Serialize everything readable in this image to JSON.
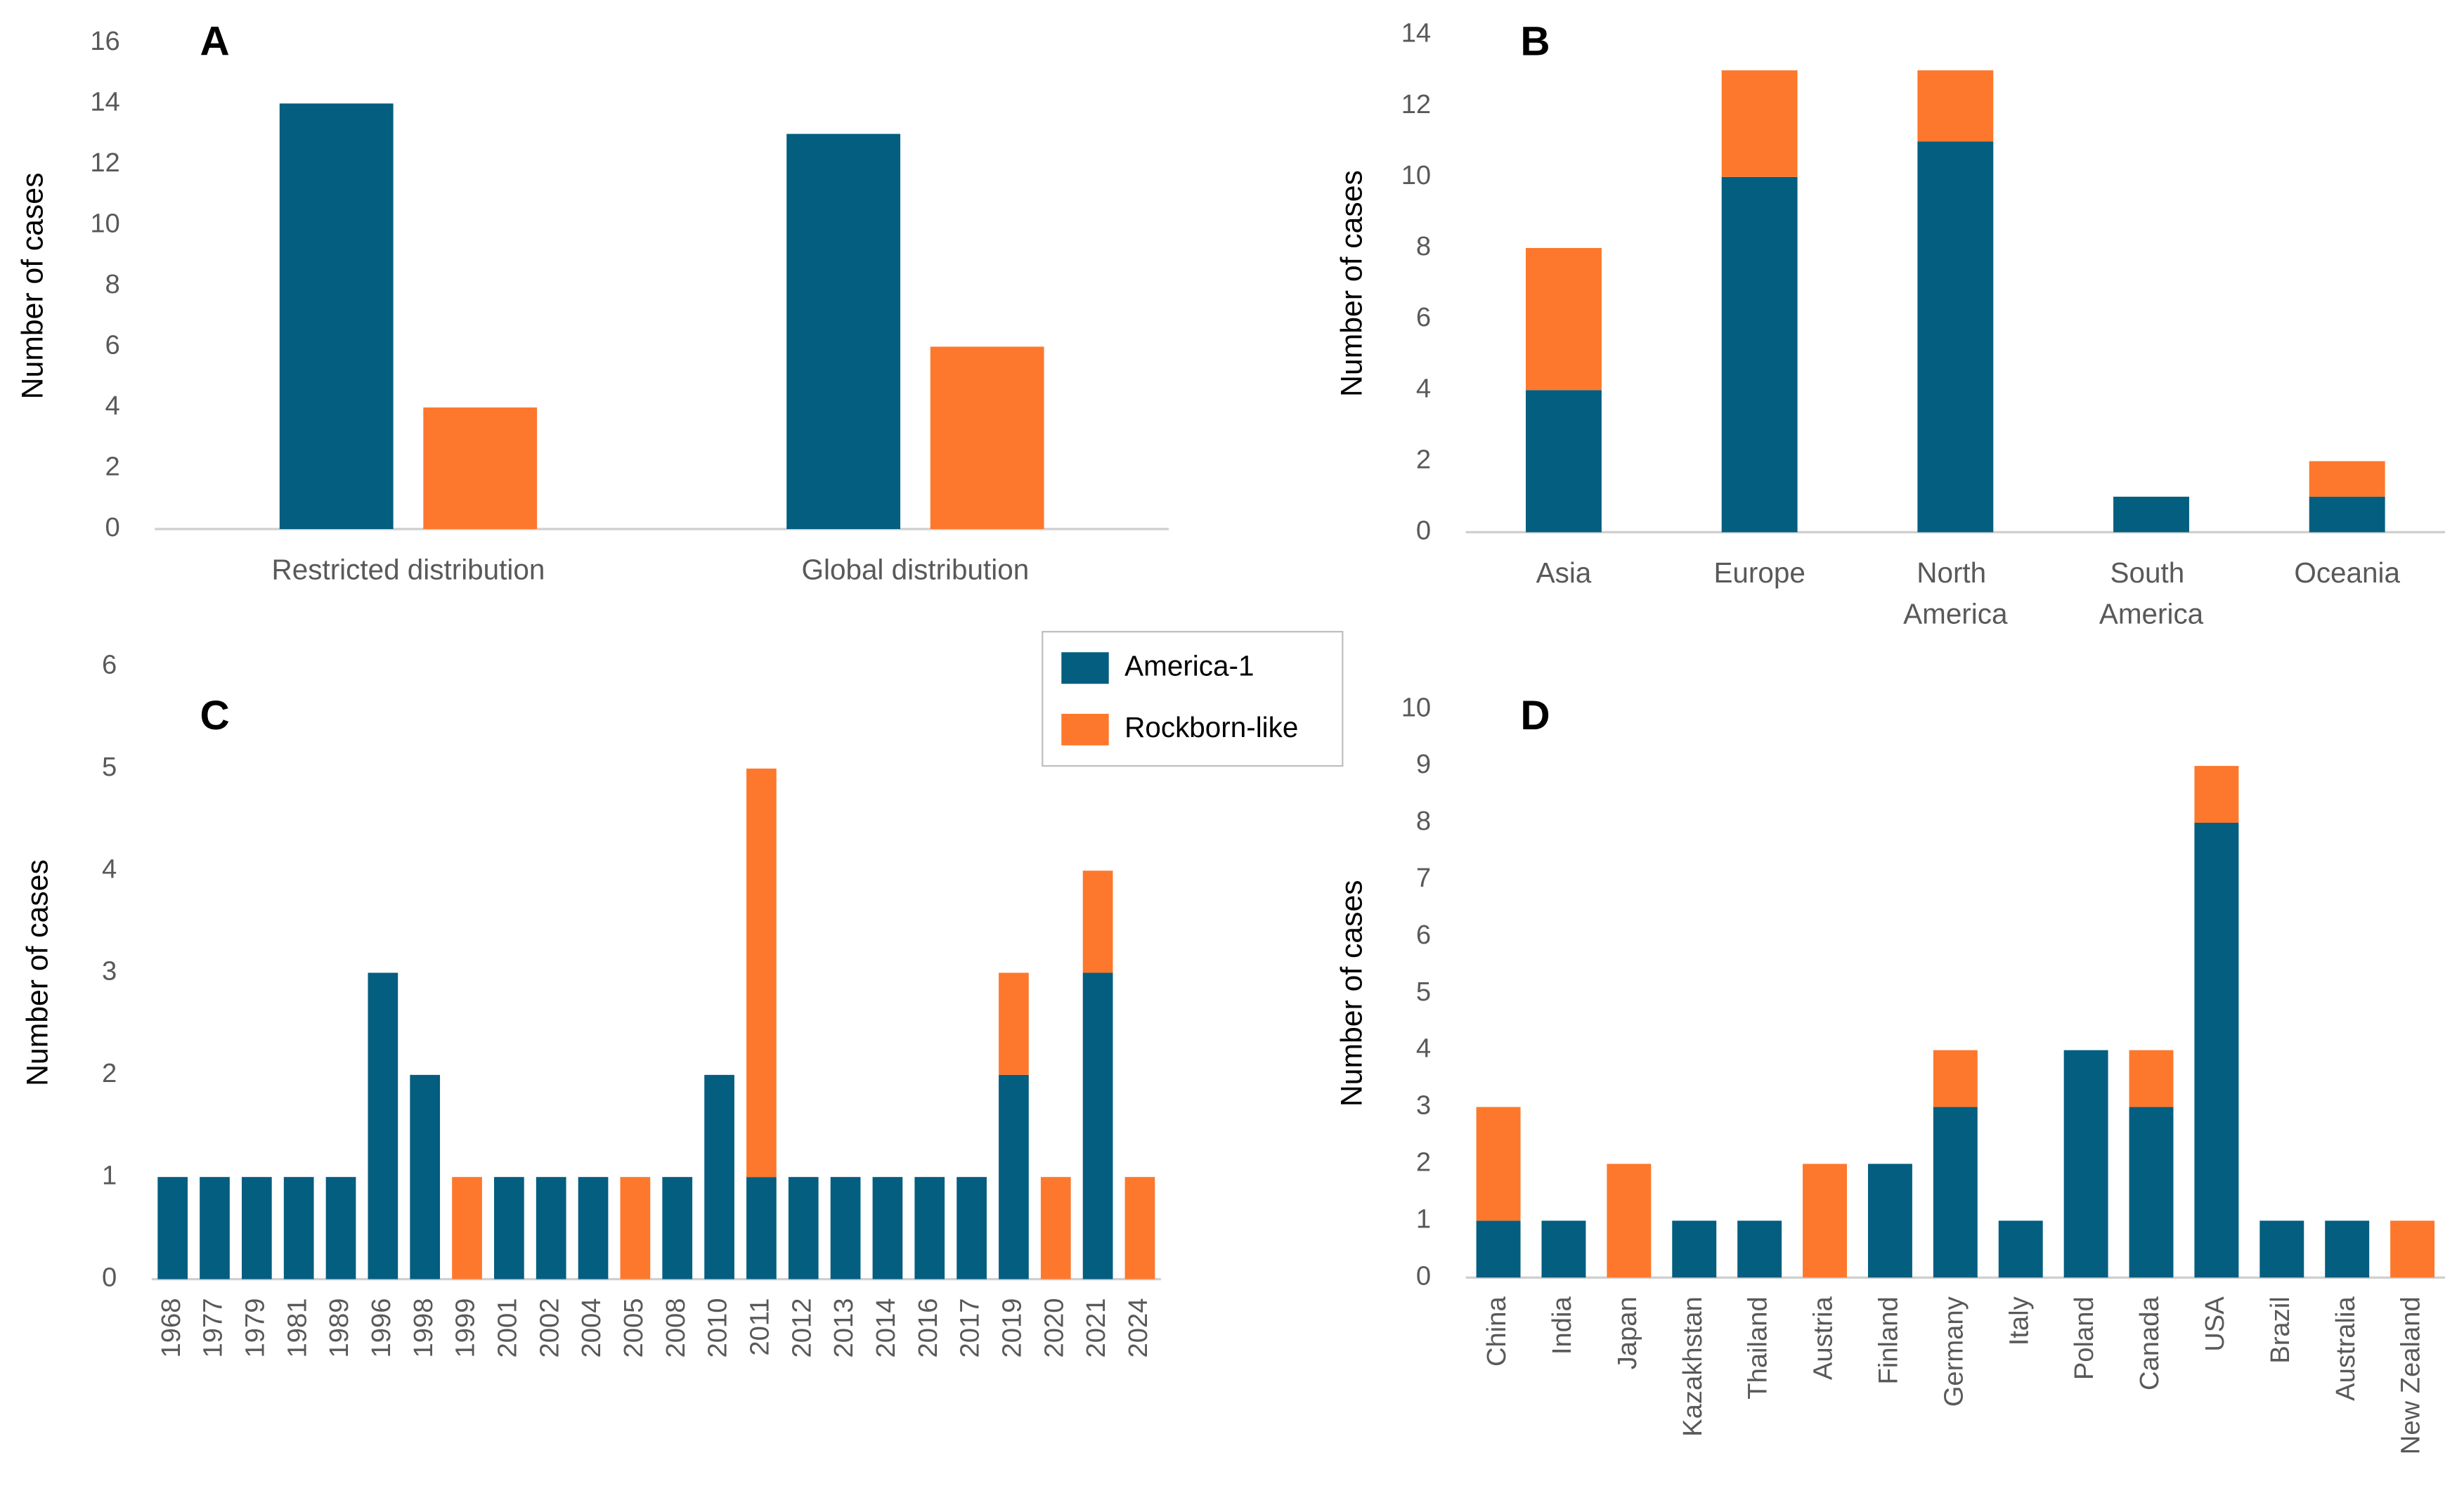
{
  "chart_data": [
    {
      "type": "bar",
      "label": "A",
      "y_label": "Number of cases",
      "stacked": false,
      "categories": [
        "Restricted distribution",
        "Global distribution"
      ],
      "series": [
        {
          "color": "#035e80",
          "values": [
            14,
            13
          ]
        },
        {
          "color": "#fd782c",
          "values": [
            4,
            6
          ]
        }
      ],
      "ylim": [
        0,
        16
      ],
      "yticks": [
        0,
        2,
        4,
        6,
        8,
        10,
        12,
        14,
        16
      ],
      "grid": false
    },
    {
      "type": "bar",
      "label": "B",
      "y_label": "Number of cases",
      "stacked": true,
      "categories": [
        "Asia",
        "Europe",
        "North America",
        "South America",
        "Oceania"
      ],
      "series": [
        {
          "color": "#035e80",
          "values": [
            4,
            10,
            11,
            1,
            1
          ]
        },
        {
          "color": "#fd782c",
          "values": [
            4,
            3,
            2,
            0,
            1
          ]
        }
      ],
      "ylim": [
        0,
        14
      ],
      "yticks": [
        0,
        2,
        4,
        6,
        8,
        10,
        12,
        14
      ],
      "grid": false
    },
    {
      "type": "bar",
      "label": "C",
      "y_label": "Number of cases",
      "stacked": true,
      "categories": [
        "1968",
        "1977",
        "1979",
        "1981",
        "1989",
        "1996",
        "1998",
        "1999",
        "2001",
        "2002",
        "2004",
        "2005",
        "2008",
        "2010",
        "2011",
        "2012",
        "2013",
        "2014",
        "2016",
        "2017",
        "2019",
        "2020",
        "2021",
        "2024"
      ],
      "series": [
        {
          "name": "America-1",
          "color": "#035e80",
          "values": [
            1,
            1,
            1,
            1,
            1,
            3,
            2,
            0,
            1,
            1,
            1,
            0,
            1,
            2,
            1,
            1,
            1,
            1,
            1,
            1,
            2,
            0,
            3,
            0
          ]
        },
        {
          "name": "Rockborn-like",
          "color": "#fd782c",
          "values": [
            0,
            0,
            0,
            0,
            0,
            0,
            0,
            1,
            0,
            0,
            0,
            1,
            0,
            0,
            4,
            0,
            0,
            0,
            0,
            0,
            1,
            1,
            1,
            1
          ]
        }
      ],
      "ylim": [
        0,
        6
      ],
      "yticks": [
        0,
        1,
        2,
        3,
        4,
        5,
        6
      ],
      "grid": false
    },
    {
      "type": "bar",
      "label": "D",
      "y_label": "Number of cases",
      "stacked": true,
      "categories": [
        "China",
        "India",
        "Japan",
        "Kazakhstan",
        "Thailand",
        "Austria",
        "Finland",
        "Germany",
        "Italy",
        "Poland",
        "Canada",
        "USA",
        "Brazil",
        "Australia",
        "New Zealand"
      ],
      "series": [
        {
          "color": "#035e80",
          "values": [
            1,
            1,
            0,
            1,
            1,
            0,
            2,
            3,
            1,
            4,
            3,
            8,
            1,
            1,
            0
          ]
        },
        {
          "color": "#fd782c",
          "values": [
            2,
            0,
            2,
            0,
            0,
            2,
            0,
            1,
            0,
            0,
            1,
            1,
            0,
            0,
            1
          ]
        }
      ],
      "ylim": [
        0,
        10
      ],
      "yticks": [
        0,
        1,
        2,
        3,
        4,
        5,
        6,
        7,
        8,
        9,
        10
      ],
      "grid": false
    }
  ]
}
